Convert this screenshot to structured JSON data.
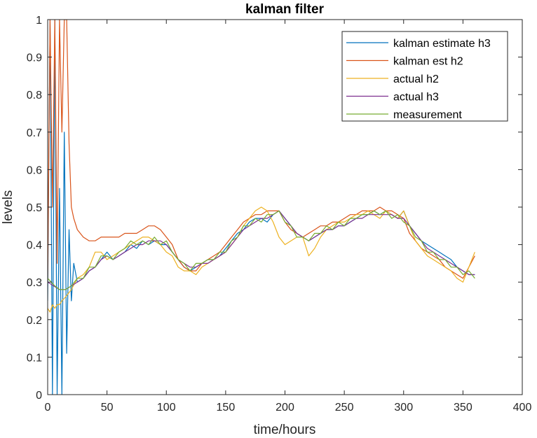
{
  "chart_data": {
    "type": "line",
    "title": "kalman filter",
    "xlabel": "time/hours",
    "ylabel": "levels",
    "xlim": [
      0,
      400
    ],
    "ylim": [
      0,
      1
    ],
    "xticks": [
      "0",
      "50",
      "100",
      "150",
      "200",
      "250",
      "300",
      "350",
      "400"
    ],
    "yticks": [
      "0",
      "0.1",
      "0.2",
      "0.3",
      "0.4",
      "0.5",
      "0.6",
      "0.7",
      "0.8",
      "0.9",
      "1"
    ],
    "legend_position": "top-right",
    "grid": false,
    "series": [
      {
        "name": "kalman estimate h3",
        "color": "#0072BD",
        "x": [
          0,
          2,
          4,
          6,
          8,
          10,
          12,
          14,
          16,
          18,
          20,
          22,
          25,
          30,
          35,
          40,
          45,
          50,
          55,
          60,
          65,
          70,
          75,
          80,
          85,
          90,
          95,
          100,
          105,
          110,
          115,
          120,
          125,
          130,
          135,
          140,
          145,
          150,
          155,
          160,
          165,
          170,
          175,
          180,
          185,
          190,
          195,
          200,
          205,
          210,
          215,
          220,
          225,
          230,
          235,
          240,
          245,
          250,
          255,
          260,
          265,
          270,
          275,
          280,
          285,
          290,
          295,
          300,
          305,
          310,
          315,
          320,
          325,
          330,
          335,
          340,
          345,
          350,
          355,
          360
        ],
        "y": [
          0.25,
          1.0,
          0.0,
          1.0,
          0.0,
          0.55,
          0.0,
          0.7,
          0.11,
          0.44,
          0.25,
          0.35,
          0.3,
          0.31,
          0.33,
          0.34,
          0.36,
          0.38,
          0.36,
          0.37,
          0.38,
          0.4,
          0.39,
          0.41,
          0.4,
          0.41,
          0.4,
          0.4,
          0.38,
          0.36,
          0.34,
          0.33,
          0.34,
          0.35,
          0.36,
          0.36,
          0.37,
          0.39,
          0.41,
          0.43,
          0.44,
          0.46,
          0.47,
          0.47,
          0.46,
          0.48,
          0.49,
          0.47,
          0.45,
          0.43,
          0.42,
          0.41,
          0.42,
          0.43,
          0.44,
          0.44,
          0.45,
          0.45,
          0.46,
          0.47,
          0.48,
          0.48,
          0.49,
          0.48,
          0.49,
          0.48,
          0.47,
          0.49,
          0.45,
          0.43,
          0.41,
          0.4,
          0.39,
          0.38,
          0.37,
          0.36,
          0.34,
          0.33,
          0.32,
          0.32
        ]
      },
      {
        "name": "kalman est h2",
        "color": "#D95319",
        "x": [
          0,
          2,
          4,
          6,
          8,
          10,
          12,
          14,
          16,
          18,
          20,
          22,
          25,
          30,
          35,
          40,
          45,
          50,
          55,
          60,
          65,
          70,
          75,
          80,
          85,
          90,
          95,
          100,
          105,
          110,
          115,
          120,
          125,
          130,
          135,
          140,
          145,
          150,
          155,
          160,
          165,
          170,
          175,
          180,
          185,
          190,
          195,
          200,
          205,
          210,
          215,
          220,
          225,
          230,
          235,
          240,
          245,
          250,
          255,
          260,
          265,
          270,
          275,
          280,
          285,
          290,
          295,
          300,
          305,
          310,
          315,
          320,
          325,
          330,
          335,
          340,
          345,
          350,
          355,
          360
        ],
        "y": [
          0.3,
          1.0,
          0.5,
          1.0,
          0.35,
          1.0,
          0.7,
          1.0,
          1.0,
          0.67,
          0.5,
          0.47,
          0.44,
          0.42,
          0.41,
          0.41,
          0.42,
          0.42,
          0.42,
          0.42,
          0.43,
          0.43,
          0.43,
          0.44,
          0.45,
          0.45,
          0.44,
          0.42,
          0.4,
          0.36,
          0.34,
          0.33,
          0.33,
          0.35,
          0.36,
          0.37,
          0.38,
          0.4,
          0.42,
          0.44,
          0.46,
          0.47,
          0.48,
          0.48,
          0.49,
          0.49,
          0.49,
          0.46,
          0.44,
          0.43,
          0.42,
          0.43,
          0.44,
          0.45,
          0.45,
          0.46,
          0.46,
          0.47,
          0.48,
          0.48,
          0.49,
          0.49,
          0.49,
          0.5,
          0.49,
          0.49,
          0.48,
          0.47,
          0.43,
          0.41,
          0.39,
          0.38,
          0.37,
          0.36,
          0.34,
          0.33,
          0.32,
          0.31,
          0.34,
          0.37
        ]
      },
      {
        "name": "actual h2",
        "color": "#EDB120",
        "x": [
          0,
          2,
          4,
          6,
          8,
          10,
          12,
          15,
          20,
          25,
          30,
          35,
          40,
          45,
          50,
          55,
          60,
          65,
          70,
          75,
          80,
          85,
          90,
          95,
          100,
          105,
          110,
          115,
          120,
          125,
          130,
          135,
          140,
          145,
          150,
          155,
          160,
          165,
          170,
          175,
          180,
          185,
          190,
          195,
          200,
          205,
          210,
          215,
          220,
          225,
          230,
          235,
          240,
          245,
          250,
          255,
          260,
          265,
          270,
          275,
          280,
          285,
          290,
          295,
          300,
          305,
          310,
          315,
          320,
          325,
          330,
          335,
          340,
          345,
          350,
          355,
          360
        ],
        "y": [
          0.23,
          0.22,
          0.24,
          0.23,
          0.24,
          0.24,
          0.25,
          0.26,
          0.28,
          0.31,
          0.32,
          0.34,
          0.38,
          0.38,
          0.36,
          0.37,
          0.38,
          0.39,
          0.4,
          0.41,
          0.42,
          0.42,
          0.41,
          0.4,
          0.38,
          0.37,
          0.34,
          0.33,
          0.33,
          0.32,
          0.34,
          0.35,
          0.36,
          0.37,
          0.38,
          0.4,
          0.42,
          0.45,
          0.47,
          0.49,
          0.5,
          0.49,
          0.46,
          0.42,
          0.4,
          0.41,
          0.42,
          0.42,
          0.37,
          0.39,
          0.42,
          0.44,
          0.45,
          0.46,
          0.46,
          0.47,
          0.48,
          0.48,
          0.49,
          0.48,
          0.47,
          0.49,
          0.48,
          0.47,
          0.49,
          0.45,
          0.41,
          0.39,
          0.37,
          0.36,
          0.35,
          0.34,
          0.33,
          0.31,
          0.3,
          0.34,
          0.38
        ]
      },
      {
        "name": "actual h3",
        "color": "#7E2F8E",
        "x": [
          0,
          5,
          10,
          15,
          20,
          25,
          30,
          35,
          40,
          45,
          50,
          55,
          60,
          65,
          70,
          75,
          80,
          85,
          90,
          95,
          100,
          105,
          110,
          115,
          120,
          125,
          130,
          135,
          140,
          145,
          150,
          155,
          160,
          165,
          170,
          175,
          180,
          185,
          190,
          195,
          200,
          205,
          210,
          215,
          220,
          225,
          230,
          235,
          240,
          245,
          250,
          255,
          260,
          265,
          270,
          275,
          280,
          285,
          290,
          295,
          300,
          305,
          310,
          315,
          320,
          325,
          330,
          335,
          340,
          345,
          350,
          355,
          360
        ],
        "y": [
          0.3,
          0.29,
          0.28,
          0.28,
          0.29,
          0.3,
          0.31,
          0.33,
          0.34,
          0.36,
          0.37,
          0.36,
          0.37,
          0.38,
          0.39,
          0.4,
          0.4,
          0.41,
          0.41,
          0.41,
          0.4,
          0.38,
          0.36,
          0.35,
          0.34,
          0.34,
          0.35,
          0.35,
          0.36,
          0.37,
          0.38,
          0.4,
          0.42,
          0.44,
          0.45,
          0.46,
          0.47,
          0.47,
          0.48,
          0.49,
          0.47,
          0.45,
          0.43,
          0.42,
          0.41,
          0.42,
          0.43,
          0.44,
          0.44,
          0.45,
          0.45,
          0.46,
          0.47,
          0.47,
          0.48,
          0.48,
          0.48,
          0.48,
          0.48,
          0.47,
          0.47,
          0.45,
          0.43,
          0.41,
          0.39,
          0.38,
          0.37,
          0.36,
          0.35,
          0.34,
          0.33,
          0.32,
          0.32
        ]
      },
      {
        "name": "measurement",
        "color": "#77AC30",
        "x": [
          0,
          3,
          6,
          10,
          15,
          20,
          25,
          30,
          35,
          40,
          45,
          50,
          55,
          60,
          65,
          70,
          75,
          80,
          85,
          90,
          95,
          100,
          105,
          110,
          115,
          120,
          125,
          130,
          135,
          140,
          145,
          150,
          155,
          160,
          165,
          170,
          175,
          180,
          185,
          190,
          195,
          200,
          205,
          210,
          215,
          220,
          225,
          230,
          235,
          240,
          245,
          250,
          255,
          260,
          265,
          270,
          275,
          280,
          285,
          290,
          295,
          300,
          305,
          310,
          315,
          320,
          325,
          330,
          335,
          340,
          345,
          350,
          355,
          360
        ],
        "y": [
          0.31,
          0.3,
          0.29,
          0.28,
          0.28,
          0.29,
          0.31,
          0.31,
          0.34,
          0.34,
          0.37,
          0.37,
          0.36,
          0.38,
          0.39,
          0.41,
          0.4,
          0.41,
          0.4,
          0.42,
          0.4,
          0.41,
          0.38,
          0.36,
          0.35,
          0.33,
          0.35,
          0.35,
          0.36,
          0.36,
          0.38,
          0.38,
          0.41,
          0.42,
          0.45,
          0.45,
          0.47,
          0.46,
          0.48,
          0.48,
          0.49,
          0.46,
          0.45,
          0.42,
          0.42,
          0.41,
          0.43,
          0.43,
          0.45,
          0.44,
          0.46,
          0.45,
          0.47,
          0.47,
          0.48,
          0.48,
          0.49,
          0.48,
          0.49,
          0.47,
          0.48,
          0.46,
          0.45,
          0.42,
          0.41,
          0.38,
          0.38,
          0.36,
          0.36,
          0.34,
          0.34,
          0.32,
          0.33,
          0.31
        ]
      }
    ]
  }
}
